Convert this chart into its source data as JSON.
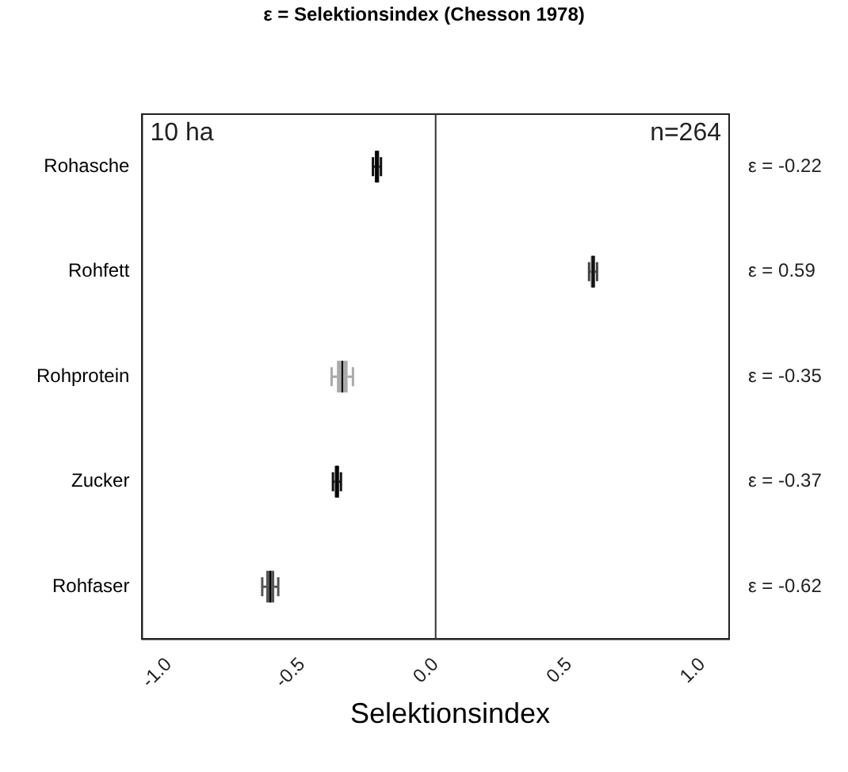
{
  "chart_data": {
    "type": "box",
    "orientation": "horizontal",
    "title": "ε = Selektionsindex (Chesson 1978)",
    "xlabel": "Selektionsindex",
    "categories": [
      "Rohasche",
      "Rohfett",
      "Rohprotein",
      "Zucker",
      "Rohfaser"
    ],
    "boxes": [
      {
        "low": -0.235,
        "q1": -0.228,
        "median": -0.22,
        "q3": -0.212,
        "high": -0.205
      },
      {
        "low": 0.575,
        "q1": 0.582,
        "median": 0.59,
        "q3": 0.598,
        "high": 0.605
      },
      {
        "low": -0.39,
        "q1": -0.37,
        "median": -0.35,
        "q3": -0.33,
        "high": -0.31
      },
      {
        "low": -0.385,
        "q1": -0.378,
        "median": -0.37,
        "q3": -0.362,
        "high": -0.355
      },
      {
        "low": -0.65,
        "q1": -0.635,
        "median": -0.62,
        "q3": -0.605,
        "high": -0.59
      }
    ],
    "colors": [
      "#111111",
      "#444444",
      "#aaaaaa",
      "#111111",
      "#555555"
    ],
    "value_labels": [
      "ε = -0.22",
      "ε = 0.59",
      "ε = -0.35",
      "ε = -0.37",
      "ε = -0.62"
    ],
    "xlim": [
      -1.1,
      1.1
    ],
    "xticks": [
      {
        "value": -1,
        "label": "-1.0"
      },
      {
        "value": -0.5,
        "label": "-0.5"
      },
      {
        "value": 0,
        "label": "0.0"
      },
      {
        "value": 0.5,
        "label": "0.5"
      },
      {
        "value": 1,
        "label": "1.0"
      }
    ],
    "ref_lines": [
      {
        "axis": "x",
        "value": 0,
        "color": "#333333"
      }
    ],
    "annotations": [
      "10 ha",
      "n=264"
    ],
    "grid": false,
    "legend": false
  }
}
